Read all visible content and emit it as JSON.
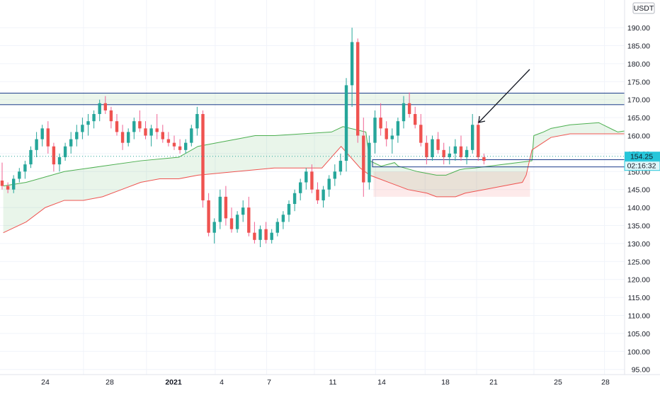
{
  "chart_data": {
    "type": "candlestick",
    "currency": "USDT",
    "y_axis": {
      "min": 93,
      "max": 196,
      "ticks": [
        "95.00",
        "100.00",
        "105.00",
        "110.00",
        "115.00",
        "120.00",
        "125.00",
        "130.00",
        "135.00",
        "140.00",
        "145.00",
        "150.00",
        "155.00",
        "160.00",
        "165.00",
        "170.00",
        "175.00",
        "180.00",
        "185.00",
        "190.00"
      ]
    },
    "x_axis": {
      "ticks": [
        "24",
        "28",
        "2021",
        "4",
        "7",
        "11",
        "14",
        "18",
        "21",
        "25",
        "28"
      ],
      "bold_ticks": [
        "2021"
      ]
    },
    "last_price": "154.25",
    "countdown": "02:16:32",
    "colors": {
      "up": "#26a69a",
      "down": "#ef5350",
      "up_wick": "#26a69a",
      "down_wick": "#f06292",
      "cloud_green": "#4caf50",
      "cloud_red": "#ef5350",
      "box_border": "#1a3a8a",
      "box_fill": "#e8f5e9",
      "price_label_bg": "#26c6da"
    },
    "zones": [
      {
        "from_day": -1,
        "to_day": 37,
        "y_low": 168.6,
        "y_high": 171.8
      },
      {
        "from_day": 19,
        "to_day": 35,
        "y_low": 151.3,
        "y_high": 153.3
      }
    ],
    "annotation_arrow": {
      "from": [
        33.5,
        168.6
      ],
      "to": [
        29.6,
        161.6
      ]
    },
    "candles": [
      [
        147.5,
        152.5,
        145,
        146
      ],
      [
        146,
        147,
        144,
        145
      ],
      [
        145,
        149,
        144,
        148
      ],
      [
        148,
        151,
        147,
        150
      ],
      [
        150,
        153,
        148,
        152
      ],
      [
        152,
        157,
        151,
        156
      ],
      [
        156,
        161,
        154,
        159
      ],
      [
        159,
        163,
        157,
        162
      ],
      [
        162,
        164,
        155,
        157
      ],
      [
        157,
        158,
        150,
        152
      ],
      [
        152,
        155,
        150,
        154
      ],
      [
        154,
        158,
        153,
        157
      ],
      [
        157,
        161,
        155,
        159
      ],
      [
        159,
        163,
        157,
        161
      ],
      [
        161,
        165,
        159,
        163
      ],
      [
        163,
        166,
        160,
        164
      ],
      [
        164,
        167,
        162,
        166
      ],
      [
        166,
        170,
        164,
        169
      ],
      [
        169,
        171,
        166,
        167
      ],
      [
        167,
        168,
        162,
        164
      ],
      [
        164,
        166,
        160,
        161
      ],
      [
        161,
        163,
        156,
        158
      ],
      [
        158,
        162,
        157,
        161
      ],
      [
        161,
        165,
        159,
        164
      ],
      [
        164,
        167,
        161,
        162
      ],
      [
        162,
        164,
        159,
        160
      ],
      [
        160,
        163,
        157,
        162
      ],
      [
        162,
        166,
        159,
        161
      ],
      [
        161,
        163,
        158,
        159
      ],
      [
        159,
        161,
        157,
        158
      ],
      [
        158,
        160,
        156,
        157
      ],
      [
        157,
        159,
        155,
        156
      ],
      [
        156,
        159,
        155,
        158
      ],
      [
        158,
        163,
        157,
        162
      ],
      [
        162,
        168,
        160,
        166
      ],
      [
        166,
        167,
        140,
        142
      ],
      [
        142,
        144,
        132,
        133
      ],
      [
        133,
        137,
        130,
        136
      ],
      [
        136,
        145,
        134,
        143
      ],
      [
        143,
        146,
        135,
        137
      ],
      [
        137,
        140,
        133,
        134
      ],
      [
        134,
        139,
        133,
        138
      ],
      [
        138,
        142,
        136,
        140
      ],
      [
        140,
        143,
        132,
        133
      ],
      [
        133,
        136,
        130,
        131
      ],
      [
        131,
        135,
        129,
        134
      ],
      [
        134,
        136,
        130,
        131
      ],
      [
        131,
        134,
        130,
        133
      ],
      [
        133,
        137,
        132,
        136
      ],
      [
        136,
        139,
        134,
        138
      ],
      [
        138,
        142,
        136,
        141
      ],
      [
        141,
        145,
        139,
        144
      ],
      [
        144,
        148,
        142,
        147
      ],
      [
        147,
        151,
        145,
        150
      ],
      [
        150,
        152,
        144,
        145
      ],
      [
        145,
        147,
        141,
        142
      ],
      [
        142,
        146,
        140,
        145
      ],
      [
        145,
        149,
        143,
        148
      ],
      [
        148,
        152,
        146,
        150
      ],
      [
        150,
        155,
        149,
        153
      ],
      [
        153,
        176,
        150,
        174
      ],
      [
        174,
        190,
        168,
        186
      ],
      [
        186,
        187,
        158,
        160
      ],
      [
        160,
        165,
        143,
        147
      ],
      [
        147,
        160,
        145,
        158
      ],
      [
        158,
        167,
        155,
        165
      ],
      [
        165,
        169,
        160,
        162
      ],
      [
        162,
        164,
        157,
        159
      ],
      [
        159,
        162,
        155,
        160
      ],
      [
        160,
        165,
        158,
        164
      ],
      [
        164,
        171,
        162,
        169
      ],
      [
        169,
        172,
        165,
        166
      ],
      [
        166,
        168,
        162,
        163
      ],
      [
        163,
        166,
        157,
        158
      ],
      [
        158,
        160,
        152,
        154
      ],
      [
        154,
        160,
        153,
        159
      ],
      [
        159,
        161,
        155,
        156
      ],
      [
        156,
        158,
        152,
        154
      ],
      [
        154,
        157,
        152,
        155
      ],
      [
        155,
        159,
        153,
        157
      ],
      [
        157,
        160,
        153,
        154
      ],
      [
        154,
        157,
        152,
        156
      ],
      [
        156,
        166,
        155,
        163
      ],
      [
        163,
        164,
        153,
        154
      ],
      [
        154,
        155,
        152,
        153
      ]
    ],
    "cloud": {
      "top": [
        [
          -0.2,
          146
        ],
        [
          1,
          147
        ],
        [
          3,
          150
        ],
        [
          5,
          151.5
        ],
        [
          7,
          153
        ],
        [
          9,
          154
        ],
        [
          10,
          157
        ],
        [
          11,
          158
        ],
        [
          12,
          159
        ],
        [
          13,
          160
        ],
        [
          14,
          160
        ],
        [
          17,
          161
        ],
        [
          17.6,
          162.5
        ],
        [
          18.8,
          161
        ],
        [
          19,
          153
        ],
        [
          19.6,
          151.5
        ],
        [
          20.3,
          152.5
        ],
        [
          20.5,
          151.5
        ],
        [
          21.5,
          150
        ],
        [
          22.5,
          149
        ],
        [
          23,
          149
        ],
        [
          23.7,
          150.5
        ],
        [
          24,
          150.8
        ],
        [
          24.5,
          151
        ],
        [
          26,
          152
        ],
        [
          27.2,
          152.8
        ],
        [
          27.5,
          153
        ],
        [
          27.6,
          160
        ],
        [
          28.1,
          161
        ],
        [
          28.5,
          162
        ],
        [
          29.5,
          163
        ],
        [
          31,
          163.6
        ],
        [
          31.8,
          161.5
        ],
        [
          32,
          161
        ],
        [
          33,
          161.8
        ],
        [
          33.5,
          162
        ]
      ],
      "bottom": [
        [
          -0.2,
          133
        ],
        [
          1,
          136
        ],
        [
          2,
          140
        ],
        [
          3,
          142
        ],
        [
          4,
          142
        ],
        [
          5,
          143
        ],
        [
          6,
          145
        ],
        [
          7,
          147
        ],
        [
          8,
          148
        ],
        [
          9,
          148
        ],
        [
          10,
          149
        ],
        [
          12,
          150
        ],
        [
          14,
          151
        ],
        [
          15,
          151
        ],
        [
          16.5,
          151
        ],
        [
          17,
          154
        ],
        [
          17.5,
          157
        ],
        [
          18.5,
          151
        ],
        [
          19,
          149
        ],
        [
          20,
          147
        ],
        [
          21,
          145
        ],
        [
          22,
          144
        ],
        [
          22.5,
          143
        ],
        [
          23.5,
          143
        ],
        [
          24,
          144
        ],
        [
          25,
          145
        ],
        [
          26,
          146
        ],
        [
          27,
          147
        ],
        [
          27.2,
          149
        ],
        [
          27.5,
          156
        ],
        [
          28.5,
          159.5
        ],
        [
          29.5,
          160.5
        ],
        [
          33.5,
          160.5
        ]
      ],
      "red_from_day": 19.2,
      "red_to_day": 27.4
    }
  }
}
